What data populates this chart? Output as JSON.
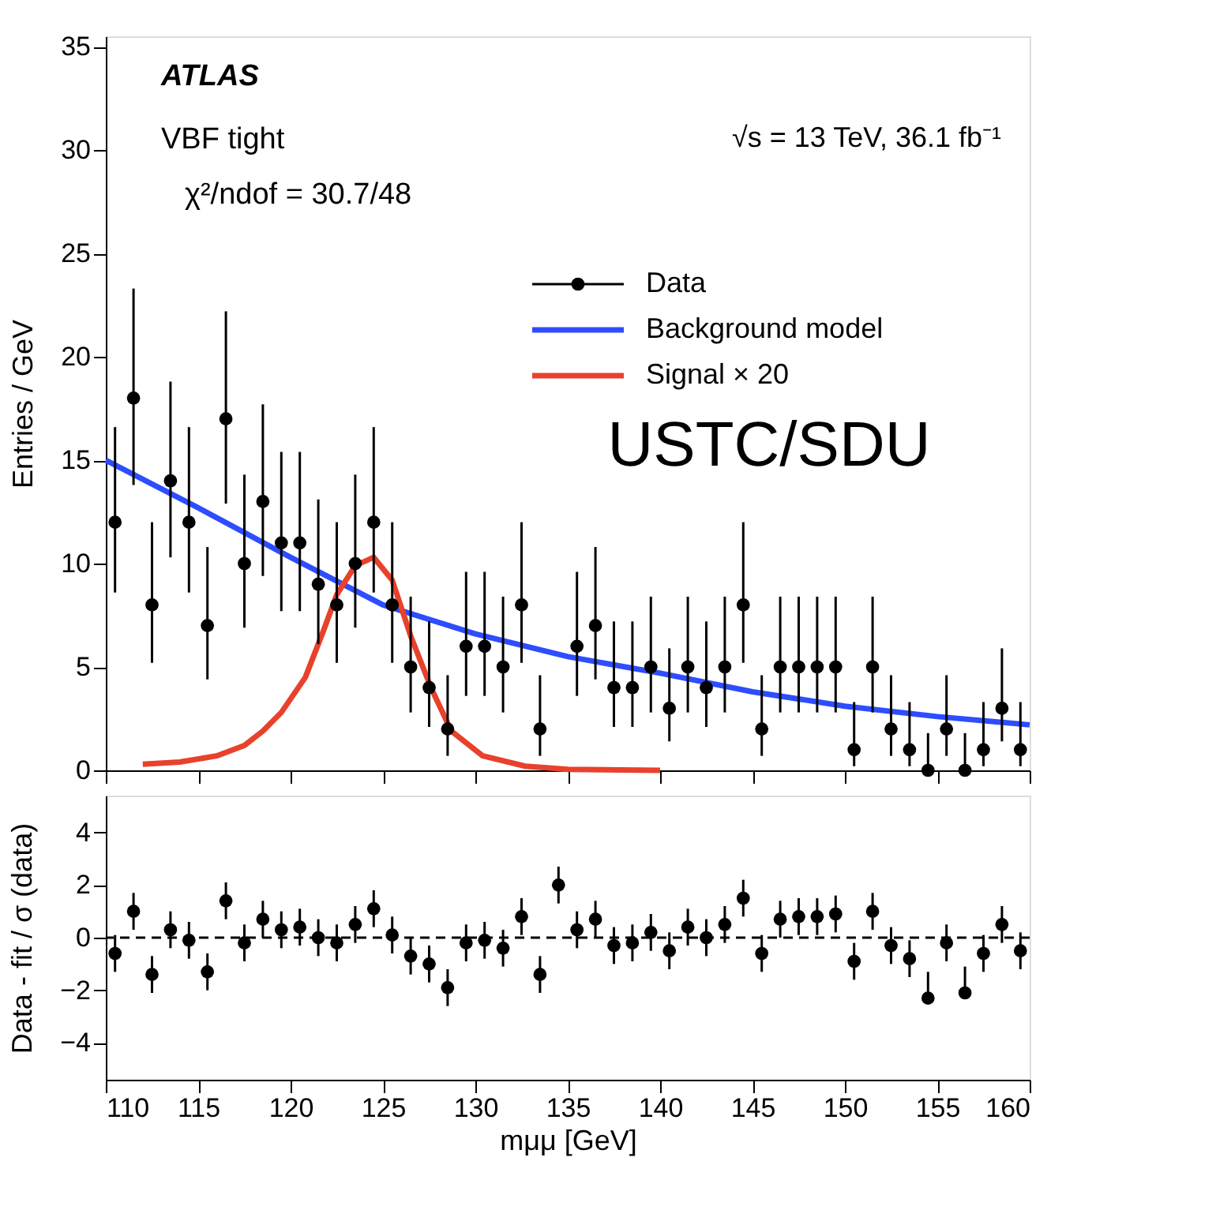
{
  "chart_data": [
    {
      "type": "scatter",
      "ylabel": "Entries / GeV",
      "xlim": [
        110,
        160
      ],
      "xticks": [
        110,
        115,
        120,
        125,
        130,
        135,
        140,
        145,
        150,
        155,
        160
      ],
      "ylim": [
        0,
        35.5
      ],
      "yticks": [
        0,
        5,
        10,
        15,
        20,
        25,
        30,
        35
      ],
      "tick_labels": "y",
      "grid": false,
      "legend": "top right",
      "annotations": [
        "ATLAS",
        "VBF tight",
        "χ²/ndof = 30.7/48",
        "√s = 13 TeV, 36.1 fb⁻¹",
        "USTC/SDU"
      ],
      "x": [
        110.5,
        111.5,
        112.5,
        113.5,
        114.5,
        115.5,
        116.5,
        117.5,
        118.5,
        119.5,
        120.5,
        121.5,
        122.5,
        123.5,
        124.5,
        125.5,
        126.5,
        127.5,
        128.5,
        129.5,
        130.5,
        131.5,
        132.5,
        133.5,
        134.5,
        135.5,
        136.5,
        137.5,
        138.5,
        139.5,
        140.5,
        141.5,
        142.5,
        143.5,
        144.5,
        145.5,
        146.5,
        147.5,
        148.5,
        149.5,
        150.5,
        151.5,
        152.5,
        153.5,
        154.5,
        155.5,
        156.5,
        157.5,
        158.5,
        159.5
      ],
      "series": [
        {
          "name": "Data",
          "marker": "circle",
          "color": "#000000",
          "values": [
            12,
            18,
            8,
            14,
            12,
            7,
            17,
            10,
            13,
            11,
            11,
            9,
            8,
            10,
            12,
            8,
            5,
            4,
            2,
            6,
            6,
            5,
            8,
            2,
            null,
            6,
            7,
            4,
            4,
            5,
            3,
            5,
            4,
            5,
            8,
            2,
            5,
            5,
            5,
            5,
            1,
            5,
            2,
            1,
            0,
            2,
            0,
            1,
            3,
            1
          ],
          "errors": [
            [
              8.6,
              16.6
            ],
            [
              13.8,
              23.3
            ],
            [
              5.2,
              12.0
            ],
            [
              10.3,
              18.8
            ],
            [
              8.6,
              16.6
            ],
            [
              4.4,
              10.8
            ],
            [
              12.9,
              22.2
            ],
            [
              6.9,
              14.3
            ],
            [
              9.4,
              17.7
            ],
            [
              7.7,
              15.4
            ],
            [
              7.7,
              15.4
            ],
            [
              6.1,
              13.1
            ],
            [
              5.2,
              12.0
            ],
            [
              6.9,
              14.3
            ],
            [
              8.6,
              16.6
            ],
            [
              5.2,
              12.0
            ],
            [
              2.8,
              8.4
            ],
            [
              2.1,
              7.2
            ],
            [
              0.7,
              4.6
            ],
            [
              3.6,
              9.6
            ],
            [
              3.6,
              9.6
            ],
            [
              2.8,
              8.4
            ],
            [
              5.2,
              12.0
            ],
            [
              0.7,
              4.6
            ],
            null,
            [
              3.6,
              9.6
            ],
            [
              4.4,
              10.8
            ],
            [
              2.1,
              7.2
            ],
            [
              2.1,
              7.2
            ],
            [
              2.8,
              8.4
            ],
            [
              1.4,
              5.9
            ],
            [
              2.8,
              8.4
            ],
            [
              2.1,
              7.2
            ],
            [
              2.8,
              8.4
            ],
            [
              5.2,
              12.0
            ],
            [
              0.7,
              4.6
            ],
            [
              2.8,
              8.4
            ],
            [
              2.8,
              8.4
            ],
            [
              2.8,
              8.4
            ],
            [
              2.8,
              8.4
            ],
            [
              0.2,
              3.3
            ],
            [
              2.8,
              8.4
            ],
            [
              0.7,
              4.6
            ],
            [
              0.2,
              3.3
            ],
            [
              0,
              1.8
            ],
            [
              0.7,
              4.6
            ],
            [
              0,
              1.8
            ],
            [
              0.2,
              3.3
            ],
            [
              1.4,
              5.9
            ],
            [
              0.2,
              3.3
            ]
          ]
        },
        {
          "name": "Background model",
          "type": "line",
          "color": "#2e4dff",
          "x": [
            110,
            115,
            120,
            125,
            130,
            135,
            140,
            145,
            150,
            155,
            160
          ],
          "values": [
            15,
            12.7,
            10.3,
            8.0,
            6.6,
            5.5,
            4.7,
            3.8,
            3.1,
            2.6,
            2.2
          ]
        },
        {
          "name": "Signal × 20",
          "type": "line",
          "color": "#e8412c",
          "x": [
            112,
            114,
            116,
            117.5,
            118.5,
            119.5,
            120.8,
            121.8,
            122.5,
            123.5,
            124.5,
            125.5,
            126.5,
            127.6,
            128.7,
            130.4,
            132.7,
            135,
            140
          ],
          "values": [
            0.3,
            0.4,
            0.7,
            1.2,
            1.9,
            2.8,
            4.5,
            6.8,
            8.5,
            9.9,
            10.3,
            9.2,
            6.5,
            4.0,
            1.9,
            0.7,
            0.2,
            0.05,
            0.0
          ]
        }
      ]
    },
    {
      "type": "scatter",
      "xlabel": "mμμ [GeV]",
      "ylabel": "Data - fit / σ (data)",
      "xlim": [
        110,
        160
      ],
      "xticks": [
        110,
        115,
        120,
        125,
        130,
        135,
        140,
        145,
        150,
        155,
        160
      ],
      "ylim": [
        -5.4,
        5.4
      ],
      "yticks": [
        {
          "value": -4,
          "label": "−4"
        },
        {
          "value": -2,
          "label": "−2"
        },
        0,
        2,
        4
      ],
      "grid": false,
      "marker": "circle",
      "ref_lines": [
        {
          "axis": "y",
          "value": 0,
          "line_style": "dashed",
          "color": "#000000"
        }
      ],
      "x": [
        110.5,
        111.5,
        112.5,
        113.5,
        114.5,
        115.5,
        116.5,
        117.5,
        118.5,
        119.5,
        120.5,
        121.5,
        122.5,
        123.5,
        124.5,
        125.5,
        126.5,
        127.5,
        128.5,
        129.5,
        130.5,
        131.5,
        132.5,
        133.5,
        134.5,
        135.5,
        136.5,
        137.5,
        138.5,
        139.5,
        140.5,
        141.5,
        142.5,
        143.5,
        144.5,
        145.5,
        146.5,
        147.5,
        148.5,
        149.5,
        150.5,
        151.5,
        152.5,
        153.5,
        154.5,
        155.5,
        156.5,
        157.5,
        158.5,
        159.5
      ],
      "series": [
        {
          "type": "scatter",
          "color": "#000000",
          "values": [
            -0.6,
            1.0,
            -1.4,
            0.3,
            -0.1,
            -1.3,
            1.4,
            -0.2,
            0.7,
            0.3,
            0.4,
            0.0,
            -0.2,
            0.5,
            1.1,
            0.1,
            -0.7,
            -1.0,
            -1.9,
            -0.2,
            -0.1,
            -0.4,
            0.8,
            -1.4,
            2.0,
            0.3,
            0.7,
            -0.3,
            -0.2,
            0.2,
            -0.5,
            0.4,
            0.0,
            0.5,
            1.5,
            -0.6,
            0.7,
            0.8,
            0.8,
            0.9,
            -0.9,
            1.0,
            -0.3,
            -0.8,
            -2.3,
            -0.2,
            -2.1,
            -0.6,
            0.5,
            -0.5
          ],
          "errors": [
            0.7,
            0.7,
            0.7,
            0.7,
            0.7,
            0.7,
            0.7,
            0.7,
            0.7,
            0.7,
            0.7,
            0.7,
            0.7,
            0.7,
            0.7,
            0.7,
            0.7,
            0.7,
            0.7,
            0.7,
            0.7,
            0.7,
            0.7,
            0.7,
            0.7,
            0.7,
            0.7,
            0.7,
            0.7,
            0.7,
            0.7,
            0.7,
            0.7,
            0.7,
            0.7,
            0.7,
            0.7,
            0.7,
            0.7,
            0.7,
            0.7,
            0.7,
            0.7,
            0.7,
            [
              -2.3,
              -1.3
            ],
            0.7,
            [
              -2.1,
              -1.1
            ],
            0.7,
            0.7,
            0.7
          ]
        }
      ]
    }
  ]
}
